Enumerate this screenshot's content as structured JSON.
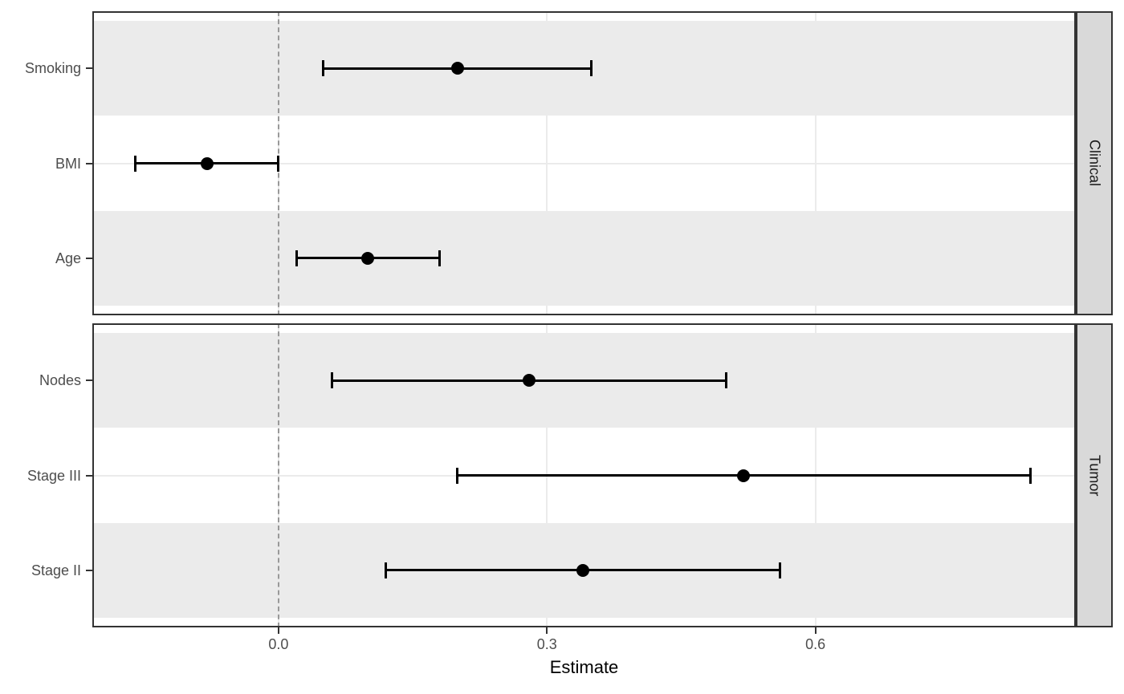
{
  "chart_data": {
    "type": "scatter",
    "subtype": "faceted-forest-plot-with-error-bars",
    "title": "",
    "xlabel": "Estimate",
    "x_tick_labels": [
      "0.0",
      "0.3",
      "0.6"
    ],
    "x_tick_values": [
      0,
      0.3,
      0.6
    ],
    "xlim": [
      -0.208,
      0.891
    ],
    "reference_line_x": 0,
    "grid": true,
    "legend": null,
    "facet_strip_position": "right",
    "shaded_row_indices": [
      0,
      2
    ],
    "facets": [
      {
        "label": "Clinical",
        "rows": [
          {
            "label": "Smoking",
            "estimate": 0.2,
            "ci_low": 0.05,
            "ci_high": 0.35
          },
          {
            "label": "BMI",
            "estimate": -0.08,
            "ci_low": -0.16,
            "ci_high": 0
          },
          {
            "label": "Age",
            "estimate": 0.1,
            "ci_low": 0.02,
            "ci_high": 0.18
          }
        ]
      },
      {
        "label": "Tumor",
        "rows": [
          {
            "label": "Nodes",
            "estimate": 0.28,
            "ci_low": 0.06,
            "ci_high": 0.5
          },
          {
            "label": "Stage III",
            "estimate": 0.52,
            "ci_low": 0.2,
            "ci_high": 0.84
          },
          {
            "label": "Stage II",
            "estimate": 0.34,
            "ci_low": 0.12,
            "ci_high": 0.56
          }
        ]
      }
    ],
    "colors": {
      "point": "#000000",
      "errorbar": "#000000",
      "stripe": "#ebebeb",
      "gridline": "#ebebeb",
      "strip_background": "#d9d9d9",
      "panel_border": "#333333",
      "reference_line": "#999999",
      "tick_mark": "#333333",
      "tick_label": "#4d4d4d",
      "axis_title": "#000000"
    }
  }
}
